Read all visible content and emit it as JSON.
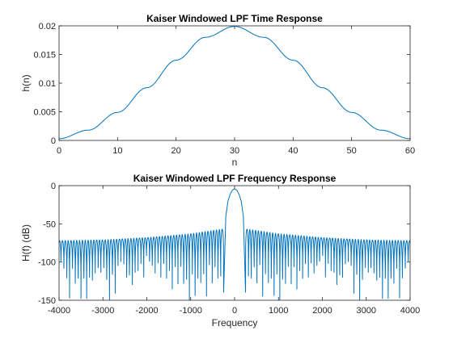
{
  "chart_data": [
    {
      "type": "line",
      "title": "Kaiser Windowed LPF Time Response",
      "xlabel": "n",
      "ylabel": "h(n)",
      "xlim": [
        0,
        60
      ],
      "ylim": [
        0,
        0.02
      ],
      "xticks": [
        0,
        10,
        20,
        30,
        40,
        50,
        60
      ],
      "xtick_labels": [
        "0",
        "10",
        "20",
        "30",
        "40",
        "50",
        "60"
      ],
      "yticks": [
        0,
        0.005,
        0.01,
        0.015,
        0.02
      ],
      "ytick_labels": [
        "0",
        "0.005",
        "0.01",
        "0.015",
        "0.02"
      ],
      "grid": false,
      "color": "#0072bd",
      "series": [
        {
          "x": [
            0,
            5,
            10,
            15,
            20,
            25,
            30,
            35,
            40,
            45,
            50,
            55,
            60
          ],
          "values": [
            0.0003,
            0.0018,
            0.0049,
            0.0092,
            0.014,
            0.018,
            0.0199,
            0.018,
            0.014,
            0.0092,
            0.0049,
            0.0018,
            0.0003
          ]
        }
      ]
    },
    {
      "type": "line",
      "title": "Kaiser Windowed LPF Frequency Response",
      "xlabel": "Frequency",
      "ylabel": "H(f) (dB)",
      "xlim": [
        -4000,
        4000
      ],
      "ylim": [
        -150,
        0
      ],
      "xticks": [
        -4000,
        -3000,
        -2000,
        -1000,
        0,
        1000,
        2000,
        3000,
        4000
      ],
      "xtick_labels": [
        "-4000",
        "-3000",
        "-2000",
        "-1000",
        "0",
        "1000",
        "2000",
        "3000",
        "4000"
      ],
      "yticks": [
        -150,
        -100,
        -50,
        0
      ],
      "ytick_labels": [
        "-150",
        "-100",
        "-50",
        "0"
      ],
      "grid": false,
      "color": "#0072bd",
      "mainlobe": {
        "x": [
          -250,
          -200,
          -150,
          -100,
          -50,
          0,
          50,
          100,
          150,
          200,
          250
        ],
        "values": [
          -140,
          -40,
          -20,
          -11,
          -6,
          -4,
          -6,
          -11,
          -20,
          -40,
          -140
        ]
      },
      "sidelobe_spacing": 65,
      "sidelobe_peaks": {
        "x": [
          300,
          1000,
          2000,
          3000,
          4000
        ],
        "values": [
          -57,
          -63,
          -68,
          -71,
          -72
        ]
      },
      "notch_depth_range": [
        -155,
        -95
      ]
    }
  ]
}
